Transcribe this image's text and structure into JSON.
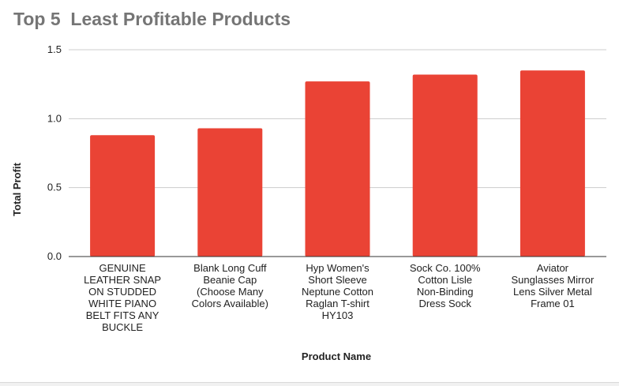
{
  "chart_data": {
    "type": "bar",
    "title": "Top 5  Least Profitable Products",
    "xlabel": "Product Name",
    "ylabel": "Total Profit",
    "ylim": [
      0,
      1.5
    ],
    "yticks": [
      "0.0",
      "0.5",
      "1.0",
      "1.5"
    ],
    "grid": true,
    "categories": [
      "GENUINE LEATHER SNAP ON STUDDED WHITE PIANO BELT FITS ANY BUCKLE",
      "Blank Long Cuff Beanie Cap (Choose Many Colors Available)",
      "Hyp Women's Short Sleeve Neptune Cotton Raglan T-shirt HY103",
      "Sock Co. 100% Cotton Lisle Non-Binding Dress Sock",
      "Aviator Sunglasses Mirror Lens Silver Metal Frame 01"
    ],
    "category_lines": [
      [
        "GENUINE",
        "LEATHER SNAP",
        "ON STUDDED",
        "WHITE PIANO",
        "BELT FITS ANY",
        "BUCKLE"
      ],
      [
        "Blank Long Cuff",
        "Beanie Cap",
        "(Choose Many",
        "Colors Available)"
      ],
      [
        "Hyp Women's",
        "Short Sleeve",
        "Neptune Cotton",
        "Raglan T-shirt",
        "HY103"
      ],
      [
        "Sock Co. 100%",
        "Cotton Lisle",
        "Non-Binding",
        "Dress Sock"
      ],
      [
        "Aviator",
        "Sunglasses Mirror",
        "Lens Silver Metal",
        "Frame 01"
      ]
    ],
    "values": [
      0.88,
      0.93,
      1.27,
      1.32,
      1.35
    ],
    "bar_color": "#ea4335"
  }
}
